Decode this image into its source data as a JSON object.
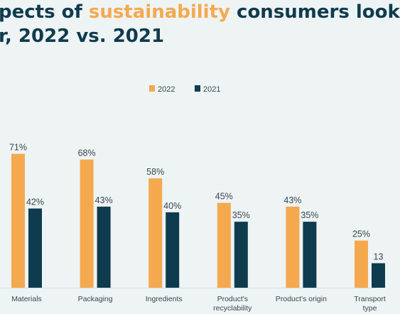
{
  "title": {
    "line1_prefix": "pects of ",
    "line1_highlight": "sustainability",
    "line1_suffix": " consumers look",
    "line2": "r, 2022 vs. 2021"
  },
  "colors": {
    "series_2022": "#f5a94e",
    "series_2021": "#0f3b4e",
    "title": "#0f3b4e",
    "background": "#eef3f4",
    "gridline": "#d5dfe3"
  },
  "chart_data": {
    "type": "bar",
    "categories": [
      [
        "Materials"
      ],
      [
        "Packaging"
      ],
      [
        "Ingredients"
      ],
      [
        "Product's",
        "recyclability"
      ],
      [
        "Product's origin"
      ],
      [
        "Transport",
        "type"
      ]
    ],
    "series": [
      {
        "name": "2022",
        "values": [
          71,
          68,
          58,
          45,
          43,
          25
        ],
        "labels": [
          "71%",
          "68%",
          "58%",
          "45%",
          "43%",
          "25%"
        ]
      },
      {
        "name": "2021",
        "values": [
          42,
          43,
          40,
          35,
          35,
          13
        ],
        "labels": [
          "42%",
          "43%",
          "40%",
          "35%",
          "35%",
          "13"
        ]
      }
    ],
    "ylim": [
      0,
      100
    ],
    "legend_position": "top-center",
    "grid": false
  }
}
